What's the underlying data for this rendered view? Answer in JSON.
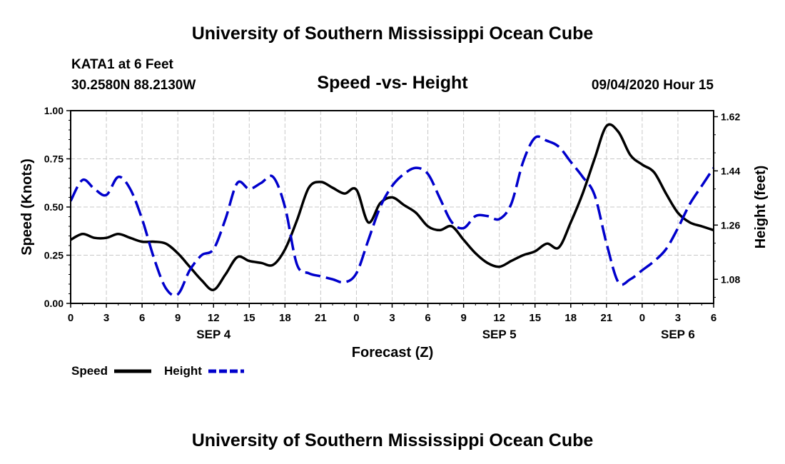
{
  "header": {
    "title": "University of Southern Mississippi Ocean Cube",
    "station": "KATA1 at 6 Feet",
    "coords": "30.2580N 88.2130W",
    "chart_title": "Speed -vs- Height",
    "datetime": "09/04/2020 Hour 15"
  },
  "footer": {
    "title": "University of Southern Mississippi Ocean Cube"
  },
  "colors": {
    "speed": "#000000",
    "height": "#0000cc",
    "grid": "#c8c8c8"
  },
  "chart_data": {
    "type": "line",
    "title": "Speed -vs- Height",
    "xlabel": "Forecast (Z)",
    "ylabel": "Speed (Knots)",
    "ylabel_right": "Height (feet)",
    "xlim": [
      0,
      54
    ],
    "ylim": [
      0,
      1
    ],
    "ylim_right": [
      1.0,
      1.64
    ],
    "x_ticks": [
      0,
      3,
      6,
      9,
      12,
      15,
      18,
      21,
      24,
      27,
      30,
      33,
      36,
      39,
      42,
      45,
      48,
      51,
      54
    ],
    "x_tick_labels": [
      "0",
      "3",
      "6",
      "9",
      "12",
      "15",
      "18",
      "21",
      "0",
      "3",
      "6",
      "9",
      "12",
      "15",
      "18",
      "21",
      "0",
      "3",
      "6"
    ],
    "y_ticks": [
      0,
      0.25,
      0.5,
      0.75,
      1.0
    ],
    "y_tick_labels": [
      "0.00",
      "0.25",
      "0.50",
      "0.75",
      "1.00"
    ],
    "y_right_ticks": [
      1.08,
      1.26,
      1.44,
      1.62
    ],
    "y_right_tick_labels": [
      "1.08",
      "1.26",
      "1.44",
      "1.62"
    ],
    "date_labels": [
      {
        "x": 12,
        "label": "SEP 4"
      },
      {
        "x": 36,
        "label": "SEP 5"
      },
      {
        "x": 51,
        "label": "SEP 6"
      }
    ],
    "grid": true,
    "legend_position": "bottom-left",
    "series": [
      {
        "name": "Speed",
        "axis": "left",
        "style": "solid",
        "x": [
          0,
          1,
          2,
          3,
          4,
          5,
          6,
          7,
          8,
          9,
          10,
          11,
          12,
          13,
          14,
          15,
          16,
          17,
          18,
          19,
          20,
          21,
          22,
          23,
          24,
          25,
          26,
          27,
          28,
          29,
          30,
          31,
          32,
          33,
          34,
          35,
          36,
          37,
          38,
          39,
          40,
          41,
          42,
          43,
          44,
          45,
          46,
          47,
          48,
          49,
          50,
          51,
          52,
          53,
          54
        ],
        "values": [
          0.33,
          0.36,
          0.34,
          0.34,
          0.36,
          0.34,
          0.32,
          0.32,
          0.31,
          0.26,
          0.19,
          0.12,
          0.07,
          0.15,
          0.24,
          0.22,
          0.21,
          0.2,
          0.28,
          0.43,
          0.6,
          0.63,
          0.6,
          0.57,
          0.59,
          0.42,
          0.52,
          0.55,
          0.51,
          0.47,
          0.4,
          0.38,
          0.4,
          0.33,
          0.26,
          0.21,
          0.19,
          0.22,
          0.25,
          0.27,
          0.31,
          0.29,
          0.42,
          0.57,
          0.75,
          0.92,
          0.89,
          0.77,
          0.72,
          0.68,
          0.57,
          0.47,
          0.42,
          0.4,
          0.38
        ]
      },
      {
        "name": "Height",
        "axis": "right",
        "style": "dashed",
        "x": [
          0,
          1,
          2,
          3,
          4,
          5,
          6,
          7,
          8,
          9,
          10,
          11,
          12,
          13,
          14,
          15,
          16,
          17,
          18,
          19,
          20,
          21,
          22,
          23,
          24,
          25,
          26,
          27,
          28,
          29,
          30,
          31,
          32,
          33,
          34,
          35,
          36,
          37,
          38,
          39,
          40,
          41,
          42,
          43,
          44,
          45,
          46,
          47,
          48,
          49,
          50,
          51,
          52,
          53,
          54
        ],
        "values": [
          1.34,
          1.41,
          1.38,
          1.36,
          1.42,
          1.38,
          1.28,
          1.15,
          1.05,
          1.03,
          1.11,
          1.16,
          1.18,
          1.28,
          1.4,
          1.38,
          1.4,
          1.42,
          1.32,
          1.13,
          1.1,
          1.09,
          1.08,
          1.07,
          1.1,
          1.21,
          1.32,
          1.39,
          1.43,
          1.45,
          1.43,
          1.35,
          1.27,
          1.25,
          1.29,
          1.29,
          1.28,
          1.33,
          1.47,
          1.55,
          1.54,
          1.52,
          1.47,
          1.42,
          1.36,
          1.2,
          1.07,
          1.08,
          1.11,
          1.14,
          1.18,
          1.25,
          1.33,
          1.39,
          1.45
        ]
      }
    ]
  }
}
